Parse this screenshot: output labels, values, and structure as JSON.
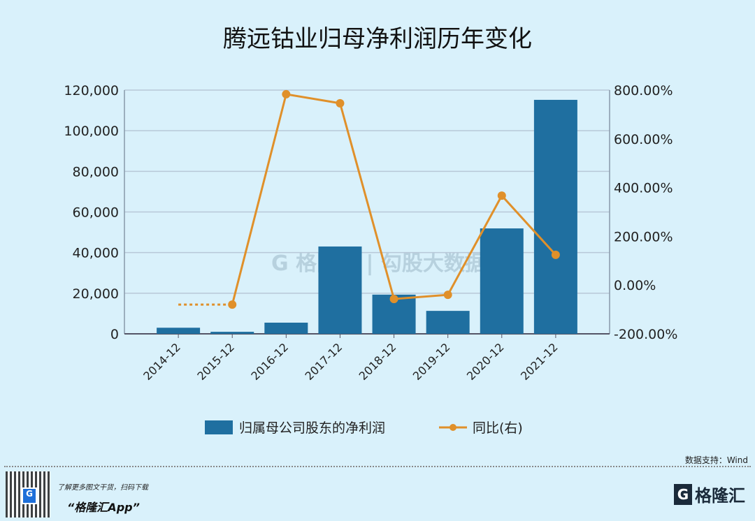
{
  "chart_data": {
    "type": "bar+line",
    "title": "腾远钴业归母净利润历年变化",
    "categories": [
      "2014-12",
      "2015-12",
      "2016-12",
      "2017-12",
      "2018-12",
      "2019-12",
      "2020-12",
      "2021-12"
    ],
    "series": [
      {
        "name": "归属母公司股东的净利润",
        "type": "bar",
        "axis": "left",
        "color": "#1f6fa0",
        "values": [
          3000,
          1000,
          5500,
          43000,
          19300,
          11300,
          51900,
          115200
        ]
      },
      {
        "name": "同比(右)",
        "type": "line",
        "axis": "right",
        "color": "#e0902a",
        "values": [
          null,
          -80,
          783,
          746,
          -57,
          -40,
          367,
          124
        ]
      }
    ],
    "yleft": {
      "lim": [
        0,
        120000
      ],
      "ticks": [
        "0",
        "20,000",
        "40,000",
        "60,000",
        "80,000",
        "100,000",
        "120,000"
      ]
    },
    "yright": {
      "lim": [
        -200,
        800
      ],
      "ticks": [
        "-200.00%",
        "0.00%",
        "200.00%",
        "400.00%",
        "600.00%",
        "800.00%"
      ]
    },
    "grid": true,
    "legend": "bottom"
  },
  "watermark": "格隆汇 | 勾股大数据 www.gogudata.com",
  "footer": {
    "source": "数据支持：Wind",
    "promo": "了解更多图文干货，扫码下载",
    "app": "“格隆汇App”",
    "brand": "格隆汇"
  }
}
